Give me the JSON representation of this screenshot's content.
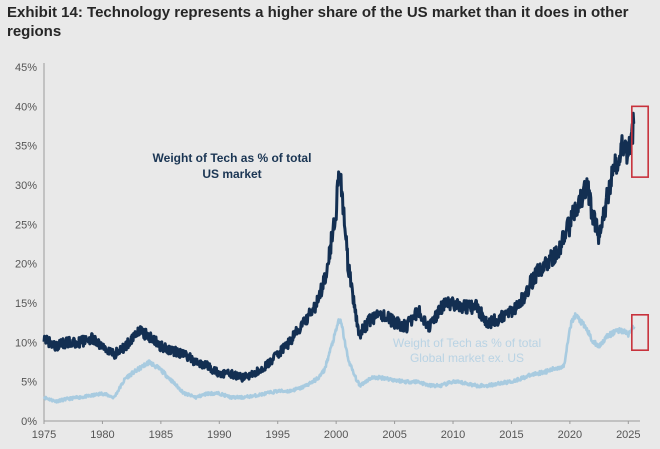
{
  "title": "Exhibit 14: Technology represents a higher share of the US market than it does in other regions",
  "colors": {
    "us_line": "#132f52",
    "global_line": "#a8cbe0",
    "highlight_box": "#c8323c",
    "axis": "#9a9a9a",
    "background": "#e9e9e9"
  },
  "chart_data": {
    "type": "line",
    "title": "Exhibit 14: Technology represents a higher share of the US market than it does in other regions",
    "xlabel": "",
    "ylabel": "",
    "xlim": [
      1975,
      2026
    ],
    "ylim": [
      0,
      45
    ],
    "grid": false,
    "x_ticks": [
      1975,
      1980,
      1985,
      1990,
      1995,
      2000,
      2005,
      2010,
      2015,
      2020,
      2025
    ],
    "x_tick_labels": [
      "1975",
      "1980",
      "1985",
      "1990",
      "1995",
      "2000",
      "2005",
      "2010",
      "2015",
      "2020",
      "2025"
    ],
    "y_ticks": [
      0,
      5,
      10,
      15,
      20,
      25,
      30,
      35,
      40,
      45
    ],
    "y_tick_labels": [
      "0%",
      "5%",
      "10%",
      "15%",
      "20%",
      "25%",
      "30%",
      "35%",
      "40%",
      "45%"
    ],
    "series": [
      {
        "name": "Weight of Tech as % of total US market",
        "label_lines": [
          "Weight of Tech as % of total",
          "US market"
        ],
        "color": "#132f52",
        "x": [
          1975,
          1976,
          1977,
          1978,
          1979,
          1980,
          1981,
          1982,
          1983,
          1984,
          1985,
          1986,
          1987,
          1988,
          1989,
          1990,
          1991,
          1992,
          1993,
          1994,
          1995,
          1996,
          1997,
          1998,
          1998.5,
          1999,
          1999.5,
          2000,
          2000.25,
          2000.5,
          2001,
          2001.5,
          2002,
          2002.5,
          2003,
          2004,
          2005,
          2006,
          2007,
          2008,
          2009,
          2010,
          2011,
          2012,
          2013,
          2014,
          2015,
          2016,
          2017,
          2018,
          2019,
          2019.5,
          2020,
          2020.5,
          2021,
          2021.5,
          2022,
          2022.5,
          2023,
          2023.5,
          2024,
          2024.5,
          2025,
          2025.5
        ],
        "values": [
          10.5,
          9.5,
          10.0,
          10.0,
          10.5,
          9.5,
          8.5,
          9.5,
          11.5,
          10.8,
          9.5,
          9.0,
          8.5,
          7.5,
          7.0,
          6.0,
          6.0,
          5.5,
          6.0,
          7.0,
          8.5,
          10.0,
          12.0,
          14.0,
          15.5,
          18.0,
          22.0,
          27.0,
          32.5,
          29.0,
          20.0,
          15.0,
          11.0,
          12.0,
          13.0,
          13.5,
          12.5,
          12.0,
          14.0,
          12.0,
          14.5,
          15.0,
          14.5,
          14.5,
          12.5,
          13.0,
          14.0,
          15.5,
          18.5,
          20.0,
          21.5,
          23.5,
          25.0,
          27.0,
          28.5,
          29.5,
          26.0,
          23.5,
          27.0,
          30.5,
          33.0,
          35.0,
          34.0,
          38.0
        ]
      },
      {
        "name": "Weight of Tech as % of total Global market ex. US",
        "label_lines": [
          "Weight of Tech as % of total",
          "Global market ex. US"
        ],
        "color": "#a8cbe0",
        "x": [
          1975,
          1976,
          1977,
          1978,
          1979,
          1980,
          1981,
          1982,
          1983,
          1984,
          1985,
          1986,
          1987,
          1988,
          1989,
          1990,
          1991,
          1992,
          1993,
          1994,
          1995,
          1996,
          1997,
          1998,
          1998.5,
          1999,
          1999.5,
          2000,
          2000.25,
          2000.5,
          2001,
          2001.5,
          2002,
          2002.5,
          2003,
          2004,
          2005,
          2006,
          2007,
          2008,
          2009,
          2010,
          2011,
          2012,
          2013,
          2014,
          2015,
          2016,
          2017,
          2018,
          2019,
          2019.5,
          2020,
          2020.5,
          2021,
          2021.5,
          2022,
          2022.5,
          2023,
          2023.5,
          2024,
          2024.5,
          2025,
          2025.5
        ],
        "values": [
          3.0,
          2.5,
          2.8,
          3.0,
          3.2,
          3.5,
          3.0,
          5.5,
          6.5,
          7.5,
          6.5,
          5.0,
          3.5,
          3.0,
          3.5,
          3.5,
          3.0,
          3.0,
          3.2,
          3.5,
          3.8,
          3.8,
          4.2,
          5.0,
          5.5,
          6.5,
          9.0,
          11.5,
          13.0,
          12.0,
          8.0,
          6.0,
          4.5,
          5.0,
          5.5,
          5.5,
          5.2,
          5.0,
          5.0,
          4.5,
          4.5,
          5.0,
          4.8,
          4.5,
          4.5,
          4.8,
          5.0,
          5.5,
          6.0,
          6.3,
          6.8,
          7.0,
          12.0,
          13.5,
          12.5,
          11.5,
          10.0,
          9.5,
          10.5,
          11.0,
          11.5,
          11.5,
          11.0,
          12.0
        ]
      }
    ],
    "highlights": [
      {
        "series": "Weight of Tech as % of total US market",
        "x_range": [
          2025.3,
          2026.7
        ],
        "y_range": [
          31,
          40
        ]
      },
      {
        "series": "Weight of Tech as % of total Global market ex. US",
        "x_range": [
          2025.3,
          2026.7
        ],
        "y_range": [
          9,
          13.5
        ]
      }
    ]
  }
}
